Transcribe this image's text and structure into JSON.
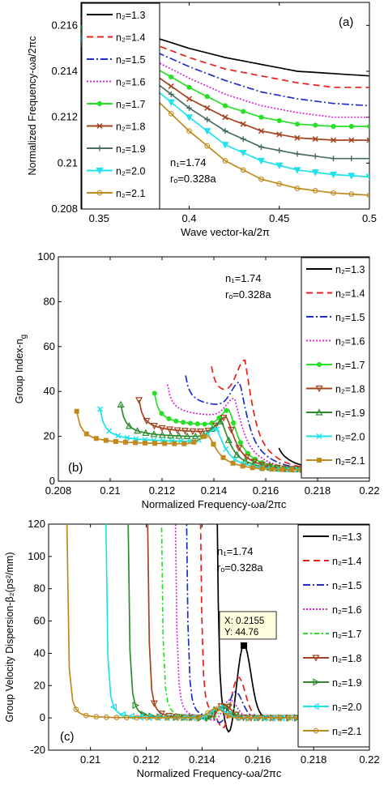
{
  "chart_data": [
    {
      "type": "line",
      "panel_label": "(a)",
      "xlabel": "Wave vector-ka/2π",
      "ylabel": "Normalized Frequency-ωa/2πc",
      "xlim": [
        0.34,
        0.5
      ],
      "ylim": [
        0.208,
        0.217
      ],
      "xticks": [
        "0.35",
        "0.4",
        "0.45",
        "0.5"
      ],
      "yticks": [
        "0.208",
        "0.21",
        "0.212",
        "0.214",
        "0.216"
      ],
      "params": [
        "n₁=1.74",
        "rₒ=0.328a"
      ],
      "legend_position": "left",
      "x": [
        0.34,
        0.36,
        0.38,
        0.4,
        0.42,
        0.44,
        0.46,
        0.48,
        0.5
      ],
      "series": [
        {
          "name": "n₂=1.3",
          "values": [
            0.2165,
            0.216,
            0.2155,
            0.215,
            0.2146,
            0.2143,
            0.214,
            0.2139,
            0.2138
          ]
        },
        {
          "name": "n₂=1.4",
          "values": [
            0.2163,
            0.2158,
            0.2152,
            0.2146,
            0.2141,
            0.2138,
            0.2135,
            0.2133,
            0.2133
          ]
        },
        {
          "name": "n₂=1.5",
          "values": [
            0.2162,
            0.2156,
            0.2149,
            0.2142,
            0.2136,
            0.2131,
            0.2128,
            0.2126,
            0.2125
          ]
        },
        {
          "name": "n₂=1.6",
          "values": [
            0.216,
            0.2153,
            0.2145,
            0.2137,
            0.213,
            0.2125,
            0.2122,
            0.212,
            0.212
          ]
        },
        {
          "name": "n₂=1.7",
          "values": [
            0.2159,
            0.2151,
            0.2142,
            0.2133,
            0.2125,
            0.212,
            0.2117,
            0.2116,
            0.2116
          ]
        },
        {
          "name": "n₂=1.8",
          "values": [
            0.2157,
            0.2149,
            0.2139,
            0.2128,
            0.212,
            0.2114,
            0.2111,
            0.211,
            0.211
          ]
        },
        {
          "name": "n₂=1.9",
          "values": [
            0.2156,
            0.2147,
            0.2136,
            0.2124,
            0.2114,
            0.2107,
            0.2104,
            0.2102,
            0.2102
          ]
        },
        {
          "name": "n₂=2.0",
          "values": [
            0.2154,
            0.2145,
            0.2133,
            0.212,
            0.2108,
            0.2101,
            0.2097,
            0.2095,
            0.2094
          ]
        },
        {
          "name": "n₂=2.1",
          "values": [
            0.2152,
            0.2142,
            0.2129,
            0.2114,
            0.2101,
            0.2093,
            0.2089,
            0.2087,
            0.2086
          ]
        }
      ]
    },
    {
      "type": "line",
      "panel_label": "(b)",
      "xlabel": "Normalized Frequency-ωa/2πc",
      "ylabel": "Group Index-n",
      "ylabel_sub": "g",
      "xlim": [
        0.208,
        0.22
      ],
      "ylim": [
        0,
        100
      ],
      "xticks": [
        "0.208",
        "0.21",
        "0.212",
        "0.214",
        "0.216",
        "0.218",
        "0.22"
      ],
      "yticks": [
        "0",
        "20",
        "40",
        "60",
        "80",
        "100"
      ],
      "params": [
        "n₁=1.74",
        "rₒ=0.328a"
      ],
      "legend_position": "right",
      "series": [
        {
          "name": "n₂=1.3",
          "f0": 0.2165,
          "fe": 0.22,
          "floor": 45,
          "peak": 62,
          "pk": 0.2153,
          "end": 5
        },
        {
          "name": "n₂=1.4",
          "f0": 0.2139,
          "fe": 0.22,
          "floor": 36,
          "peak": 52,
          "pk": 0.2152,
          "end": 5
        },
        {
          "name": "n₂=1.5",
          "f0": 0.2129,
          "fe": 0.22,
          "floor": 32,
          "peak": 43,
          "pk": 0.215,
          "end": 5
        },
        {
          "name": "n₂=1.6",
          "f0": 0.2122,
          "fe": 0.22,
          "floor": 28,
          "peak": 36,
          "pk": 0.2148,
          "end": 5
        },
        {
          "name": "n₂=1.7",
          "f0": 0.2117,
          "fe": 0.22,
          "floor": 24,
          "peak": 31,
          "pk": 0.2146,
          "end": 5
        },
        {
          "name": "n₂=1.8",
          "f0": 0.2111,
          "fe": 0.22,
          "floor": 21,
          "peak": 28,
          "pk": 0.2145,
          "end": 5
        },
        {
          "name": "n₂=1.9",
          "f0": 0.2104,
          "fe": 0.22,
          "floor": 19,
          "peak": 26,
          "pk": 0.2143,
          "end": 5
        },
        {
          "name": "n₂=2.0",
          "f0": 0.2096,
          "fe": 0.22,
          "floor": 17,
          "peak": 23,
          "pk": 0.2141,
          "end": 5
        },
        {
          "name": "n₂=2.1",
          "f0": 0.2087,
          "fe": 0.22,
          "floor": 16,
          "peak": 20,
          "pk": 0.2138,
          "end": 5
        }
      ]
    },
    {
      "type": "line",
      "panel_label": "(c)",
      "xlabel": "Normalized Frequency-ωa/2πc",
      "ylabel": "Group Velocity Dispersion-β₂(ps²/mm)",
      "xlim": [
        0.2085,
        0.22
      ],
      "ylim": [
        -20,
        120
      ],
      "xticks": [
        "0.21",
        "0.212",
        "0.214",
        "0.216",
        "0.218",
        "0.22"
      ],
      "yticks": [
        "-20",
        "0",
        "20",
        "40",
        "60",
        "80",
        "100",
        "120"
      ],
      "params": [
        "n₁=1.74",
        "rₒ=0.328a"
      ],
      "legend_position": "right",
      "datatip": {
        "x": 0.2155,
        "y": 44.76,
        "x_label": "X: 0.2155",
        "y_label": "Y: 44.76"
      },
      "series": [
        {
          "name": "n₂=1.3",
          "f0": 0.2145,
          "fe": 0.22,
          "pk": 0.2155,
          "peak": 44.76,
          "trough": -17
        },
        {
          "name": "n₂=1.4",
          "f0": 0.2139,
          "fe": 0.22,
          "pk": 0.2153,
          "peak": 25,
          "trough": -10
        },
        {
          "name": "n₂=1.5",
          "f0": 0.2134,
          "fe": 0.22,
          "pk": 0.2152,
          "peak": 16,
          "trough": -5
        },
        {
          "name": "n₂=1.6",
          "f0": 0.213,
          "fe": 0.22,
          "pk": 0.215,
          "peak": 11,
          "trough": -3
        },
        {
          "name": "n₂=1.7",
          "f0": 0.2125,
          "fe": 0.22,
          "pk": 0.2149,
          "peak": 9,
          "trough": -2
        },
        {
          "name": "n₂=1.8",
          "f0": 0.212,
          "fe": 0.22,
          "pk": 0.2148,
          "peak": 8,
          "trough": -1
        },
        {
          "name": "n₂=1.9",
          "f0": 0.2113,
          "fe": 0.22,
          "pk": 0.2147,
          "peak": 7,
          "trough": -1
        },
        {
          "name": "n₂=2.0",
          "f0": 0.2105,
          "fe": 0.22,
          "pk": 0.2146,
          "peak": 6,
          "trough": 0
        },
        {
          "name": "n₂=2.1",
          "f0": 0.2091,
          "fe": 0.22,
          "pk": 0.2145,
          "peak": 6,
          "trough": 0
        }
      ]
    }
  ],
  "styles": [
    {
      "color": "#000000",
      "dash": "",
      "marker": "none"
    },
    {
      "color": "#e8201c",
      "dash": "8,5",
      "marker": "none"
    },
    {
      "color": "#1f2fc8",
      "dash": "9,3,2,3",
      "marker": "none"
    },
    {
      "color": "#d62ad6",
      "dash": "2,2",
      "marker": "none"
    },
    {
      "color": "#28e028",
      "dash": "",
      "marker": "circle"
    },
    {
      "color": "#a4431f",
      "dash": "",
      "marker": "x"
    },
    {
      "color": "#4a6e5e",
      "dash": "",
      "marker": "plus"
    },
    {
      "color": "#1fe3ea",
      "dash": "",
      "marker": "tri-down"
    },
    {
      "color": "#c28a1c",
      "dash": "",
      "marker": "circle-open"
    }
  ],
  "styles_b": [
    {
      "color": "#000000",
      "dash": "",
      "marker": "none"
    },
    {
      "color": "#e8201c",
      "dash": "8,5",
      "marker": "none"
    },
    {
      "color": "#1f2fc8",
      "dash": "9,3,2,3",
      "marker": "none"
    },
    {
      "color": "#d62ad6",
      "dash": "2,2",
      "marker": "none"
    },
    {
      "color": "#28e028",
      "dash": "",
      "marker": "circle"
    },
    {
      "color": "#a4431f",
      "dash": "",
      "marker": "tri-down"
    },
    {
      "color": "#2e8c2e",
      "dash": "",
      "marker": "tri-up"
    },
    {
      "color": "#1fe3ea",
      "dash": "",
      "marker": "x"
    },
    {
      "color": "#c28a1c",
      "dash": "",
      "marker": "square"
    }
  ],
  "styles_c": [
    {
      "color": "#000000",
      "dash": "",
      "marker": "none"
    },
    {
      "color": "#e8201c",
      "dash": "8,5",
      "marker": "none"
    },
    {
      "color": "#1f2fc8",
      "dash": "9,3,2,3",
      "marker": "none"
    },
    {
      "color": "#d62ad6",
      "dash": "2,2",
      "marker": "none"
    },
    {
      "color": "#28e028",
      "dash": "6,3,2,3",
      "marker": "none"
    },
    {
      "color": "#a4431f",
      "dash": "",
      "marker": "tri-down"
    },
    {
      "color": "#2e8c2e",
      "dash": "",
      "marker": "tri-right"
    },
    {
      "color": "#1fe3ea",
      "dash": "",
      "marker": "tri-left"
    },
    {
      "color": "#c28a1c",
      "dash": "",
      "marker": "circle-open"
    }
  ]
}
